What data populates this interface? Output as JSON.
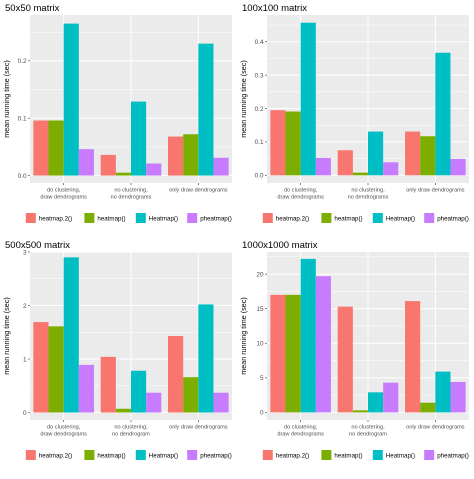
{
  "chart_data": [
    {
      "type": "bar",
      "title": "50x50 matrix",
      "xlabel": "",
      "ylabel": "mean running time (sec)",
      "ylim": [
        -0.013,
        0.28
      ],
      "yticks": [
        0.0,
        0.1,
        0.2
      ],
      "ytick_labels": [
        "0.0",
        "0.1",
        "0.2"
      ],
      "categories": [
        [
          "do clustering,",
          "draw dendrograms"
        ],
        [
          "no clustering,",
          "no dendrograms"
        ],
        [
          "only draw dendrograms"
        ]
      ],
      "series": [
        {
          "name": "heatmap.2()",
          "color": "#F8766D",
          "values": [
            0.096,
            0.036,
            0.068
          ]
        },
        {
          "name": "heatmap()",
          "color": "#7CAE00",
          "values": [
            0.096,
            0.005,
            0.072
          ]
        },
        {
          "name": "Heatmap()",
          "color": "#00BFC4",
          "values": [
            0.265,
            0.129,
            0.23
          ]
        },
        {
          "name": "pheatmap()",
          "color": "#C77CFF",
          "values": [
            0.046,
            0.021,
            0.031
          ]
        }
      ],
      "legend_position": "bottom",
      "grid": true
    },
    {
      "type": "bar",
      "title": "100x100 matrix",
      "xlabel": "",
      "ylabel": "mean running time (sec)",
      "ylim": [
        -0.023,
        0.48
      ],
      "yticks": [
        0.0,
        0.1,
        0.2,
        0.3,
        0.4
      ],
      "ytick_labels": [
        "0.0",
        "0.1",
        "0.2",
        "0.3",
        "0.4"
      ],
      "categories": [
        [
          "do clustering,",
          "draw dendrograms"
        ],
        [
          "no clustering,",
          "no dendrograms"
        ],
        [
          "only draw dendrograms"
        ]
      ],
      "series": [
        {
          "name": "heatmap.2()",
          "color": "#F8766D",
          "values": [
            0.195,
            0.075,
            0.131
          ]
        },
        {
          "name": "heatmap()",
          "color": "#7CAE00",
          "values": [
            0.191,
            0.008,
            0.117
          ]
        },
        {
          "name": "Heatmap()",
          "color": "#00BFC4",
          "values": [
            0.457,
            0.131,
            0.367
          ]
        },
        {
          "name": "pheatmap()",
          "color": "#C77CFF",
          "values": [
            0.052,
            0.039,
            0.049
          ]
        }
      ],
      "legend_position": "bottom",
      "grid": true
    },
    {
      "type": "bar",
      "title": "500x500 matrix",
      "xlabel": "",
      "ylabel": "mean running time (sec)",
      "ylim": [
        -0.14,
        3.0
      ],
      "yticks": [
        0,
        1,
        2,
        3
      ],
      "ytick_labels": [
        "0",
        "1",
        "2",
        "3"
      ],
      "categories": [
        [
          "do clustering,",
          "draw dendrograms"
        ],
        [
          "no clustering,",
          "no dendrogram"
        ],
        [
          "only draw dendrograms"
        ]
      ],
      "series": [
        {
          "name": "heatmap.2()",
          "color": "#F8766D",
          "values": [
            1.69,
            1.04,
            1.43
          ]
        },
        {
          "name": "heatmap()",
          "color": "#7CAE00",
          "values": [
            1.61,
            0.07,
            0.66
          ]
        },
        {
          "name": "Heatmap()",
          "color": "#00BFC4",
          "values": [
            2.9,
            0.78,
            2.02
          ]
        },
        {
          "name": "pheatmap()",
          "color": "#C77CFF",
          "values": [
            0.89,
            0.37,
            0.37
          ]
        }
      ],
      "legend_position": "bottom",
      "grid": true
    },
    {
      "type": "bar",
      "title": "1000x1000 matrix",
      "xlabel": "",
      "ylabel": "mean running time (sec)",
      "ylim": [
        -1.1,
        23.2
      ],
      "yticks": [
        0,
        5,
        10,
        15,
        20
      ],
      "ytick_labels": [
        "0",
        "5",
        "10",
        "15",
        "20"
      ],
      "categories": [
        [
          "do clustering,",
          "draw dendrograms"
        ],
        [
          "no clustering,",
          "no dendrogram"
        ],
        [
          "only draw dendrograms"
        ]
      ],
      "series": [
        {
          "name": "heatmap.2()",
          "color": "#F8766D",
          "values": [
            17.0,
            15.3,
            16.1
          ]
        },
        {
          "name": "heatmap()",
          "color": "#7CAE00",
          "values": [
            17.0,
            0.3,
            1.4
          ]
        },
        {
          "name": "Heatmap()",
          "color": "#00BFC4",
          "values": [
            22.2,
            2.9,
            5.9
          ]
        },
        {
          "name": "pheatmap()",
          "color": "#C77CFF",
          "values": [
            19.7,
            4.3,
            4.4
          ]
        }
      ],
      "legend_position": "bottom",
      "grid": true
    }
  ]
}
